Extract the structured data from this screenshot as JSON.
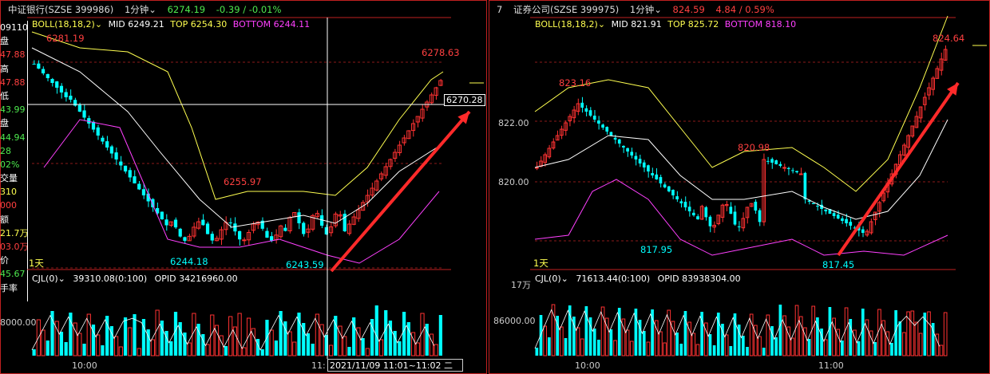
{
  "colors": {
    "up": "#ff3232",
    "down": "#00ffff",
    "mid": "#ffffff",
    "boll": "#ffff50",
    "bottom": "#ff40ff",
    "grid": "#8b1a1a"
  },
  "left": {
    "header": {
      "name": "中证银行(SZSE 399986)",
      "period": "1分钟",
      "price": "6274.19",
      "change": "-0.39 / -0.01%"
    },
    "boll": {
      "label": "BOLL(18,18,2)",
      "mid": "MID 6249.21",
      "top": "TOP 6254.30",
      "bottom": "BOTTOM 6244.11"
    },
    "annotations": {
      "high_first": "6281.19",
      "mid_high": "6255.97",
      "last_high": "6278.63",
      "low1": "6244.18",
      "low2": "6243.59",
      "crosshair_price": "6270.28",
      "day_label": "1天"
    },
    "sidebar": [
      "091101",
      "盘",
      "47.88",
      "高",
      "47.88",
      "低",
      "43.99",
      "盘",
      "44.94",
      "28",
      "02%",
      "交量",
      "310",
      "000",
      "额",
      "21.7万",
      "03.0万",
      "价",
      "45.67",
      "手率"
    ],
    "cjl": {
      "label": "CJL(0)",
      "value": "39310.08(0:100)",
      "opid": "OPID 34216960.00"
    },
    "vol_axis": "8000.00",
    "time_label": "10:00",
    "time_left": "11:",
    "crosshair_time": "2021/11/09 11:01~11:02 二"
  },
  "right": {
    "header": {
      "num": "7",
      "name": "证券公司(SZSE 399975)",
      "period": "1分钟",
      "price": "824.59",
      "change": "4.84 / 0.59%"
    },
    "boll": {
      "label": "BOLL(18,18,2)",
      "mid": "MID 821.91",
      "top": "TOP 825.72",
      "bottom": "BOTTOM 818.10"
    },
    "annotations": {
      "high1": "823.16",
      "mid_high": "820.98",
      "last_high": "824.64",
      "low1": "817.95",
      "low2": "817.45",
      "day_label": "1天"
    },
    "y_axis": [
      "822.00",
      "820.00"
    ],
    "cjl": {
      "label": "CJL(0)",
      "value": "71613.44(0:100)",
      "opid": "OPID 83938304.00"
    },
    "vol_axis": [
      "17万",
      "86000.00"
    ],
    "time_labels": [
      "10:00",
      "11:00"
    ]
  }
}
